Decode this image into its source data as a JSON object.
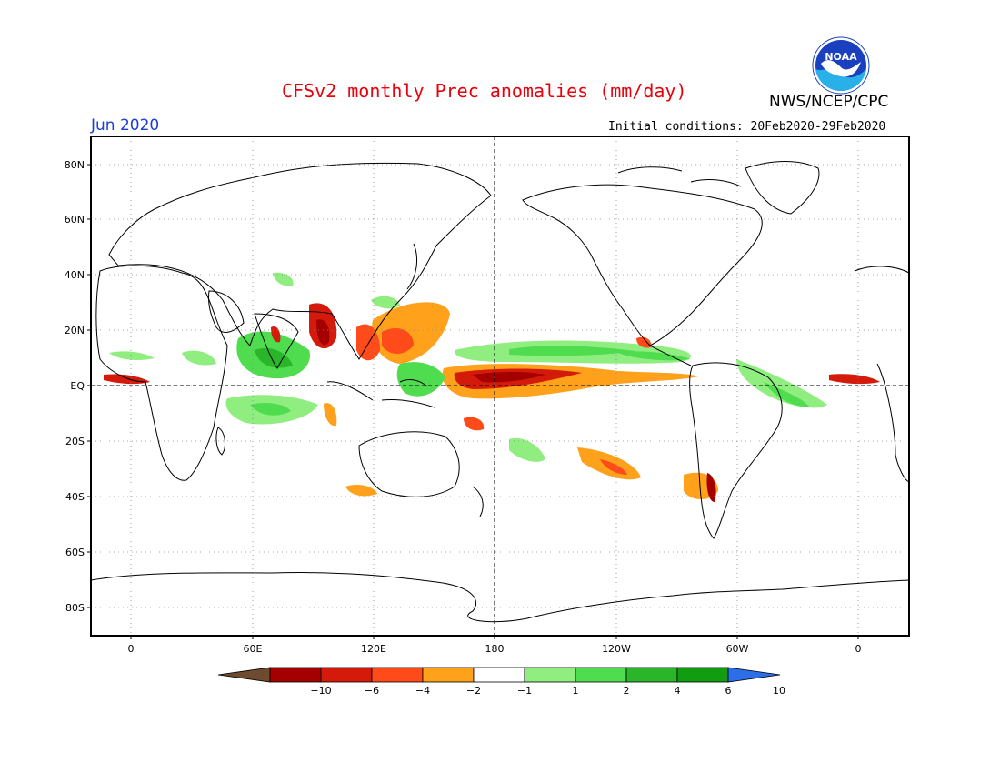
{
  "header": {
    "title": "CFSv2 monthly Prec anomalies (mm/day)",
    "agency": "NWS/NCEP/CPC",
    "month": "Jun 2020",
    "initial_conditions": "Initial conditions: 20Feb2020-29Feb2020"
  },
  "logo": {
    "text": "NOAA",
    "icon": "noaa-logo-icon"
  },
  "map": {
    "y_labels": [
      "80N",
      "60N",
      "40N",
      "20N",
      "EQ",
      "20S",
      "40S",
      "60S",
      "80S"
    ],
    "x_labels": [
      "0",
      "60E",
      "120E",
      "180",
      "120W",
      "60W",
      "0"
    ],
    "reference_lines": [
      "EQ",
      "180"
    ],
    "grid": "dotted"
  },
  "colorbar": {
    "labels": [
      "-10",
      "-6",
      "-4",
      "-2",
      "-1",
      "1",
      "2",
      "4",
      "6",
      "10"
    ],
    "colors": [
      "#6e4a2e",
      "#a50000",
      "#d41a0b",
      "#ff4a1a",
      "#ffa11a",
      "#ffffff",
      "#90ee80",
      "#4fdc4f",
      "#2ab52a",
      "#129c12",
      "#2c6ee8"
    ]
  }
}
